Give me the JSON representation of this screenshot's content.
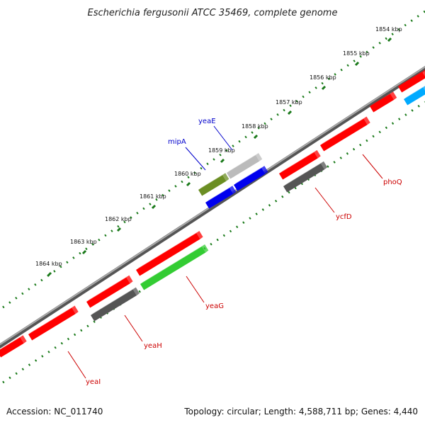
{
  "title": "Escherichia fergusonii ATCC 35469, complete genome",
  "colors": {
    "backbone": "#777777",
    "tick": "#1a7a1a",
    "red": "#ff0000",
    "gray": "#555555",
    "lightgray": "#bbbbbb",
    "green": "#33cc33",
    "olive": "#6b8e23",
    "blue": "#0000ee",
    "cyan": "#00aaff",
    "label_red": "#cc0000",
    "label_blue": "#0000cc"
  },
  "ticks": [
    "1854 kbp",
    "1855 kbp",
    "1856 kbp",
    "1857 kbp",
    "1858 kbp",
    "1859 kbp",
    "1860 kbp",
    "1861 kbp",
    "1862 kbp",
    "1863 kbp",
    "1864 kbp"
  ],
  "genes": [
    {
      "name": "yeaI",
      "color": "label_red"
    },
    {
      "name": "yeaH",
      "color": "label_red"
    },
    {
      "name": "yeaG",
      "color": "label_red"
    },
    {
      "name": "ycfD",
      "color": "label_red"
    },
    {
      "name": "phoQ",
      "color": "label_red"
    },
    {
      "name": "mipA",
      "color": "label_blue"
    },
    {
      "name": "yeaE",
      "color": "label_blue"
    }
  ],
  "footer": {
    "accession": "Accession: NC_011740",
    "summary": "Topology: circular; Length: 4,588,711 bp; Genes: 4,440"
  }
}
